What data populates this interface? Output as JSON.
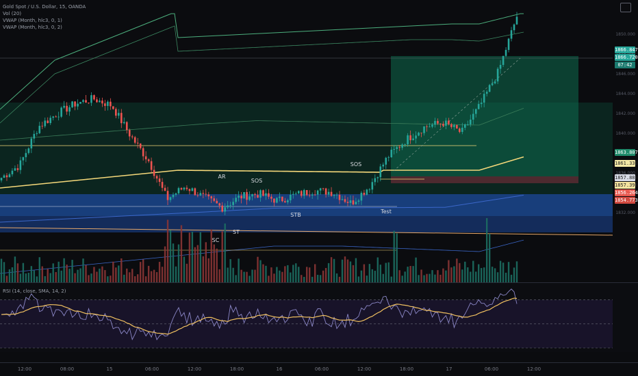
{
  "legend": {
    "symbol": "Gold Spot / U.S. Dollar, 15, OANDA",
    "vol": "Vol (20)",
    "vwap1": "VWAP (Month, hlc3, 0, 1)",
    "vwap2": "VWAP (Month, hlc3, 0, 2)",
    "rsi": "RSI (14, close, SMA, 14, 2)"
  },
  "wyckoff": {
    "sc": "SC",
    "ar": "AR",
    "st": "ST",
    "sos1": "SOS",
    "stb": "STB",
    "sos2": "SOS",
    "test": "Test"
  },
  "price_tags": {
    "t1": "1866.847",
    "t2": "1866.720",
    "t3": "07:42",
    "t4": "1863.807",
    "t5": "1861.333",
    "t6": "1857.880",
    "t7": "1857.390",
    "t8": "1856.264",
    "t9": "1854.773"
  },
  "colors": {
    "up": "#26a69a",
    "down": "#ef5350",
    "vwap": "#f5d87a",
    "band": "#4caf7d",
    "rsi": "#8b87c7",
    "rsi_ma": "#f0c060",
    "blue_band": "#1e4fa0",
    "green_zone": "#0e6b4e"
  },
  "chart_data": {
    "type": "candlestick",
    "instrument": "Gold Spot / U.S. Dollar",
    "timeframe": "15",
    "x_tick_labels": [
      "12:00",
      "08:00",
      "15",
      "06:00",
      "12:00",
      "18:00",
      "16",
      "06:00",
      "12:00",
      "18:00",
      "17",
      "06:00",
      "12:00"
    ],
    "y_tick_labels": [
      "1850.000",
      "1848.000",
      "1846.000",
      "1844.000",
      "1842.000",
      "1840.000",
      "1838.000",
      "1836.000",
      "1834.000",
      "1832.000"
    ],
    "price_range": [
      1836,
      1866
    ],
    "close_path": [
      1847.5,
      1849.0,
      1853.5,
      1855.0,
      1856.2,
      1856.8,
      1856.0,
      1852.5,
      1849.5,
      1845.0,
      1846.5,
      1845.2,
      1844.0,
      1845.3,
      1845.6,
      1844.8,
      1845.5,
      1846.0,
      1845.8,
      1844.5,
      1846.5,
      1850.0,
      1852.0,
      1853.5,
      1854.0,
      1852.8,
      1856.0,
      1860.0,
      1866.5
    ],
    "rsi_range": [
      30,
      80
    ],
    "rsi_levels": [
      70,
      50,
      30
    ],
    "annotations": [
      "SC",
      "AR",
      "ST",
      "SOS",
      "STB",
      "SOS",
      "Test"
    ]
  }
}
